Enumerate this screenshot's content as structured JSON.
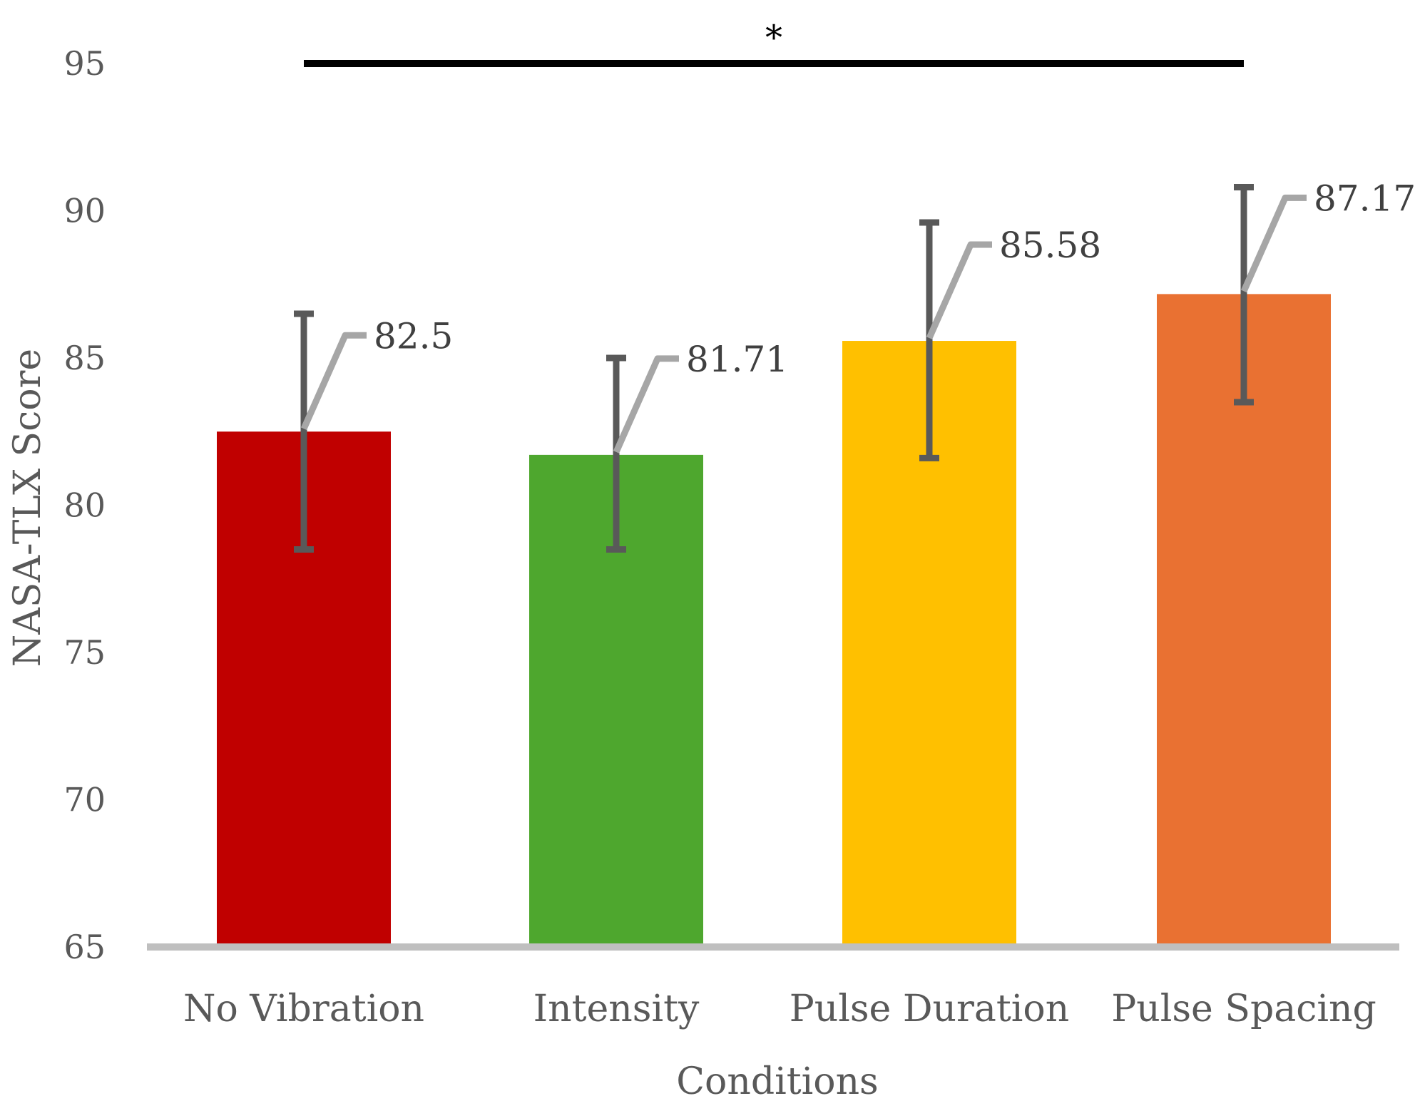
{
  "chart_data": {
    "type": "bar",
    "title": "",
    "xlabel": "Conditions",
    "ylabel": "NASA-TLX Score",
    "ylim": [
      65,
      95
    ],
    "yticks": [
      65,
      70,
      75,
      80,
      85,
      90,
      95
    ],
    "grid": false,
    "categories": [
      "No Vibration",
      "Intensity",
      "Pulse Duration",
      "Pulse Spacing"
    ],
    "values": [
      82.5,
      81.71,
      85.58,
      87.17
    ],
    "data_labels": [
      "82.5",
      "81.71",
      "85.58",
      "87.17"
    ],
    "error_low": [
      78.5,
      78.5,
      81.6,
      83.5
    ],
    "error_high": [
      86.5,
      85.0,
      89.6,
      90.8
    ],
    "colors": [
      "#c00000",
      "#4ea72e",
      "#ffc000",
      "#e97132"
    ],
    "significance": {
      "from_category": "No Vibration",
      "to_category": "Pulse Spacing",
      "label": "*",
      "level": 95
    }
  }
}
